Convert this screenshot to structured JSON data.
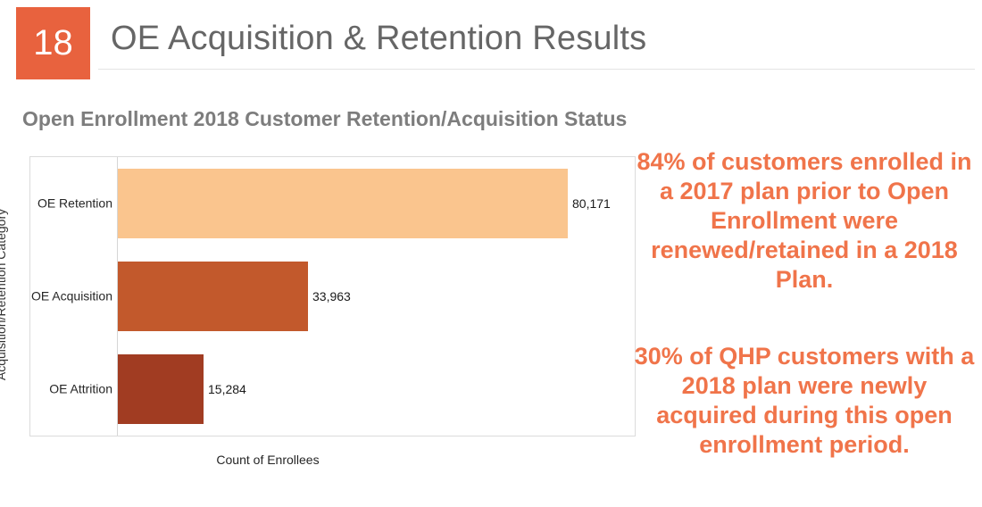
{
  "header": {
    "slide_number": "18",
    "title": "OE Acquisition & Retention Results"
  },
  "chart": {
    "title": "Open Enrollment 2018 Customer Retention/Acquisition Status"
  },
  "chart_data": {
    "type": "bar",
    "orientation": "horizontal",
    "title": "Open Enrollment 2018 Customer Retention/Acquisition Status",
    "categories": [
      "OE Retention",
      "OE Acquisition",
      "OE Attrition"
    ],
    "values": [
      80171,
      33963,
      15284
    ],
    "value_labels": [
      "80,171",
      "33,963",
      "15,284"
    ],
    "bar_colors": [
      "#FAC58E",
      "#C2592C",
      "#A13C22"
    ],
    "xlabel": "Count of Enrollees",
    "ylabel": "Acquisition/Retention Category",
    "xlim": [
      0,
      92000
    ],
    "grid": false,
    "legend": false
  },
  "annotations": {
    "retention_note": "84% of customers enrolled in a 2017 plan prior to Open Enrollment were renewed/retained in a 2018 Plan.",
    "acquisition_note": "30% of QHP customers with a 2018 plan were newly acquired during this open enrollment period."
  },
  "colors": {
    "accent_orange": "#E8623E",
    "annotation_orange": "#F0744A",
    "title_gray": "#666666",
    "chart_title_gray": "#7D7D7D",
    "plot_border": "#DBDBDB",
    "bar_retention": "#FAC58E",
    "bar_acquisition": "#C2592C",
    "bar_attrition": "#A13C22"
  }
}
